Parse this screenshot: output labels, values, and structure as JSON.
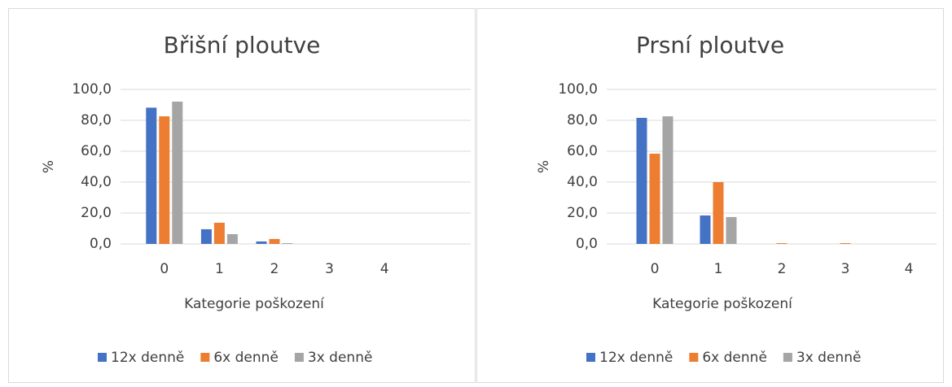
{
  "chart_data": [
    {
      "type": "bar",
      "title": "Břišní ploutve",
      "y_label": "%",
      "x_label": "Kategorie poškození",
      "categories": [
        "0",
        "1",
        "2",
        "3",
        "4"
      ],
      "series": [
        {
          "name": "12x denně",
          "color": "#4472c4",
          "values": [
            88.2,
            9.5,
            1.6,
            0,
            0
          ]
        },
        {
          "name": "6x denně",
          "color": "#ed7d31",
          "values": [
            82.6,
            13.7,
            3.2,
            0,
            0
          ]
        },
        {
          "name": "3x denně",
          "color": "#a5a5a5",
          "values": [
            92.1,
            6.3,
            0.5,
            0,
            0
          ]
        }
      ],
      "ylim": [
        0,
        100
      ],
      "yticks": [
        {
          "value": 0,
          "label": "0,0"
        },
        {
          "value": 20,
          "label": "20,0"
        },
        {
          "value": 40,
          "label": "40,0"
        },
        {
          "value": 60,
          "label": "60,0"
        },
        {
          "value": 80,
          "label": "80,0"
        },
        {
          "value": 100,
          "label": "100,0"
        }
      ],
      "grid": true,
      "legend": "bottom"
    },
    {
      "type": "bar",
      "title": "Prsní ploutve",
      "y_label": "%",
      "x_label": "Kategorie poškození",
      "categories": [
        "0",
        "1",
        "2",
        "3",
        "4"
      ],
      "series": [
        {
          "name": "12x denně",
          "color": "#4472c4",
          "values": [
            81.6,
            18.4,
            0,
            0,
            0
          ]
        },
        {
          "name": "6x denně",
          "color": "#ed7d31",
          "values": [
            58.4,
            40.0,
            0.5,
            0.5,
            0
          ]
        },
        {
          "name": "3x denně",
          "color": "#a5a5a5",
          "values": [
            82.6,
            17.4,
            0,
            0,
            0
          ]
        }
      ],
      "ylim": [
        0,
        100
      ],
      "yticks": [
        {
          "value": 0,
          "label": "0,0"
        },
        {
          "value": 20,
          "label": "20,0"
        },
        {
          "value": 40,
          "label": "40,0"
        },
        {
          "value": 60,
          "label": "60,0"
        },
        {
          "value": 80,
          "label": "80,0"
        },
        {
          "value": 100,
          "label": "100,0"
        }
      ],
      "grid": true,
      "legend": "bottom"
    }
  ]
}
